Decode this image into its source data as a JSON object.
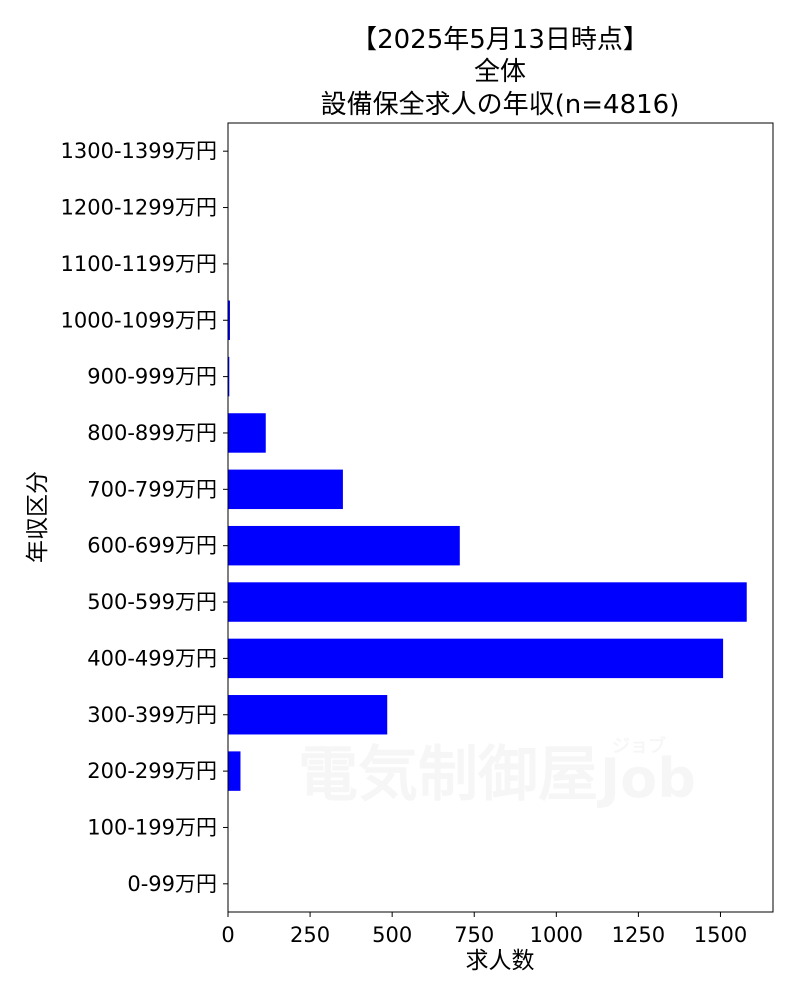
{
  "chart_data": {
    "type": "bar",
    "orientation": "horizontal",
    "title_lines": [
      "【2025年5月13日時点】",
      "全体",
      "設備保全求人の年収(n=4816)"
    ],
    "xlabel": "求人数",
    "ylabel": "年収区分",
    "categories": [
      "0-99万円",
      "100-199万円",
      "200-299万円",
      "300-399万円",
      "400-499万円",
      "500-599万円",
      "600-699万円",
      "700-799万円",
      "800-899万円",
      "900-999万円",
      "1000-1099万円",
      "1100-1199万円",
      "1200-1299万円",
      "1300-1399万円"
    ],
    "values": [
      0,
      0,
      38,
      485,
      1508,
      1580,
      706,
      350,
      115,
      4,
      6,
      0,
      0,
      0
    ],
    "xlim": [
      0,
      1660
    ],
    "xticks": [
      0,
      250,
      500,
      750,
      1000,
      1250,
      1500
    ],
    "bar_color": "#0000ff",
    "grid": false,
    "legend": "none"
  },
  "watermark": {
    "text": "電気制御屋",
    "latin": "Job",
    "kana": "ジョブ"
  }
}
